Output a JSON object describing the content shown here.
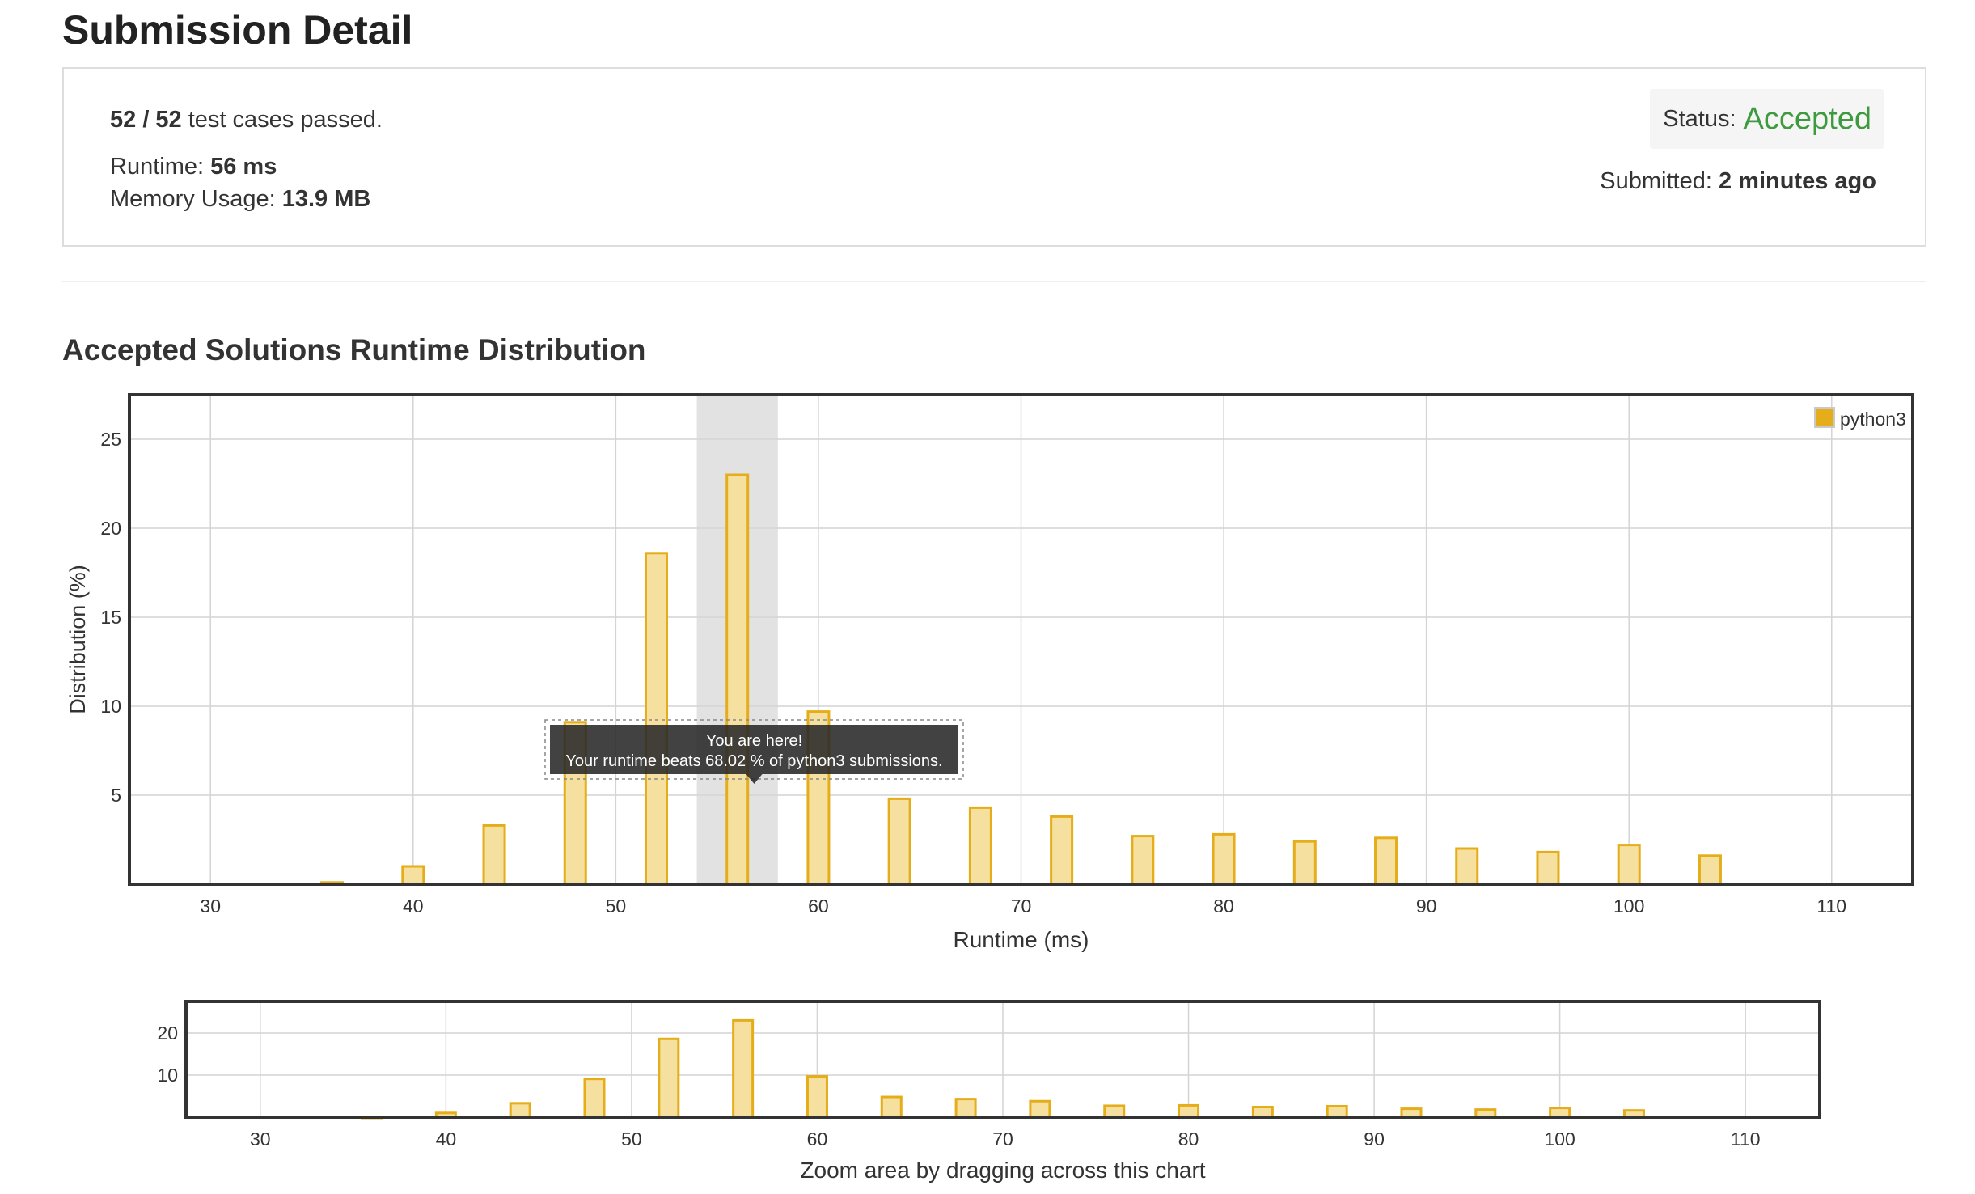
{
  "header": {
    "title": "Submission Detail"
  },
  "summary": {
    "passed": "52 / 52",
    "passed_suffix": "test cases passed.",
    "runtime_label": "Runtime:",
    "runtime_value": "56 ms",
    "memory_label": "Memory Usage:",
    "memory_value": "13.9 MB",
    "status_label": "Status:",
    "status_value": "Accepted",
    "submitted_label": "Submitted:",
    "submitted_value": "2 minutes ago"
  },
  "section": {
    "title": "Accepted Solutions Runtime Distribution"
  },
  "tooltip": {
    "line1": "You are here!",
    "line2": "Your runtime beats 68.02 % of python3 submissions."
  },
  "colors": {
    "accent": "#3e9a3e",
    "bar_fill": "#f6e0a0",
    "bar_stroke": "#e5ad1a"
  },
  "chart_data": [
    {
      "type": "bar",
      "xlabel": "Runtime (ms)",
      "ylabel": "Distribution (%)",
      "xlim": [
        26,
        114
      ],
      "ylim": [
        0,
        27.5
      ],
      "xticks": [
        30,
        40,
        50,
        60,
        70,
        80,
        90,
        100,
        110
      ],
      "yticks": [
        5,
        10,
        15,
        20,
        25
      ],
      "grid": true,
      "legend": "top-right",
      "highlight_range": [
        54,
        58
      ],
      "series": [
        {
          "name": "python3",
          "x": [
            36,
            40,
            44,
            48,
            52,
            56,
            60,
            64,
            68,
            72,
            76,
            80,
            84,
            88,
            92,
            96,
            100,
            104
          ],
          "values": [
            0.1,
            1.0,
            3.3,
            9.1,
            18.6,
            23.0,
            9.7,
            4.8,
            4.3,
            3.8,
            2.7,
            2.8,
            2.4,
            2.6,
            2.0,
            1.8,
            2.2,
            1.6
          ]
        }
      ]
    },
    {
      "type": "bar",
      "xlabel": "Zoom area by dragging across this chart",
      "xlim": [
        26,
        114
      ],
      "ylim": [
        0,
        27.5
      ],
      "xticks": [
        30,
        40,
        50,
        60,
        70,
        80,
        90,
        100,
        110
      ],
      "yticks": [
        10,
        20
      ],
      "grid": true,
      "series": [
        {
          "x": [
            36,
            40,
            44,
            48,
            52,
            56,
            60,
            64,
            68,
            72,
            76,
            80,
            84,
            88,
            92,
            96,
            100,
            104
          ],
          "values": [
            0.1,
            1.0,
            3.3,
            9.1,
            18.6,
            23.0,
            9.7,
            4.8,
            4.3,
            3.8,
            2.7,
            2.8,
            2.4,
            2.6,
            2.0,
            1.8,
            2.2,
            1.6
          ]
        }
      ]
    }
  ]
}
